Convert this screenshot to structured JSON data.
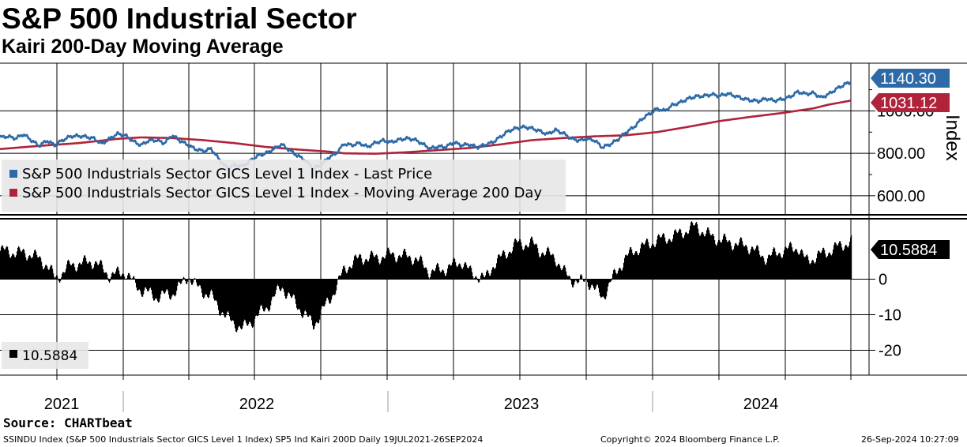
{
  "title": "S&P 500 Industrial Sector",
  "subtitle": "Kairi 200-Day Moving Average",
  "chart_data": [
    {
      "type": "line",
      "panel": "top",
      "ylabel": "Index",
      "ylim": [
        510,
        1225
      ],
      "yticks": [
        "600.00",
        "800.00",
        "1000.00"
      ],
      "grid": true,
      "x_range": [
        "2021-07-19",
        "2024-09-26"
      ],
      "legend": "upper-left",
      "series": [
        {
          "name": "S&P 500 Industrials Sector GICS Level 1 Index - Last Price",
          "color": "#2e6aa8",
          "last_label": "1140.30",
          "points": [
            [
              0.0,
              875
            ],
            [
              0.01,
              880
            ],
            [
              0.02,
              870
            ],
            [
              0.03,
              890
            ],
            [
              0.04,
              862
            ],
            [
              0.05,
              835
            ],
            [
              0.06,
              860
            ],
            [
              0.07,
              838
            ],
            [
              0.08,
              862
            ],
            [
              0.09,
              880
            ],
            [
              0.1,
              882
            ],
            [
              0.11,
              878
            ],
            [
              0.12,
              870
            ],
            [
              0.13,
              845
            ],
            [
              0.14,
              868
            ],
            [
              0.15,
              892
            ],
            [
              0.16,
              885
            ],
            [
              0.17,
              858
            ],
            [
              0.18,
              838
            ],
            [
              0.19,
              860
            ],
            [
              0.2,
              862
            ],
            [
              0.21,
              848
            ],
            [
              0.22,
              885
            ],
            [
              0.23,
              860
            ],
            [
              0.24,
              840
            ],
            [
              0.25,
              820
            ],
            [
              0.26,
              810
            ],
            [
              0.27,
              822
            ],
            [
              0.28,
              772
            ],
            [
              0.29,
              730
            ],
            [
              0.3,
              745
            ],
            [
              0.31,
              738
            ],
            [
              0.32,
              765
            ],
            [
              0.33,
              790
            ],
            [
              0.34,
              800
            ],
            [
              0.35,
              820
            ],
            [
              0.36,
              842
            ],
            [
              0.37,
              815
            ],
            [
              0.38,
              790
            ],
            [
              0.39,
              768
            ],
            [
              0.4,
              730
            ],
            [
              0.41,
              742
            ],
            [
              0.42,
              780
            ],
            [
              0.43,
              800
            ],
            [
              0.44,
              845
            ],
            [
              0.45,
              838
            ],
            [
              0.46,
              848
            ],
            [
              0.47,
              830
            ],
            [
              0.48,
              850
            ],
            [
              0.49,
              860
            ],
            [
              0.5,
              852
            ],
            [
              0.51,
              864
            ],
            [
              0.52,
              870
            ],
            [
              0.53,
              865
            ],
            [
              0.54,
              845
            ],
            [
              0.55,
              822
            ],
            [
              0.56,
              832
            ],
            [
              0.57,
              830
            ],
            [
              0.58,
              852
            ],
            [
              0.59,
              838
            ],
            [
              0.6,
              842
            ],
            [
              0.61,
              828
            ],
            [
              0.62,
              840
            ],
            [
              0.63,
              852
            ],
            [
              0.64,
              878
            ],
            [
              0.65,
              905
            ],
            [
              0.66,
              918
            ],
            [
              0.67,
              924
            ],
            [
              0.68,
              918
            ],
            [
              0.69,
              905
            ],
            [
              0.7,
              890
            ],
            [
              0.71,
              910
            ],
            [
              0.72,
              895
            ],
            [
              0.73,
              870
            ],
            [
              0.74,
              860
            ],
            [
              0.75,
              868
            ],
            [
              0.76,
              862
            ],
            [
              0.77,
              828
            ],
            [
              0.78,
              842
            ],
            [
              0.79,
              865
            ],
            [
              0.8,
              898
            ],
            [
              0.81,
              922
            ],
            [
              0.82,
              960
            ],
            [
              0.83,
              985
            ],
            [
              0.84,
              1010
            ],
            [
              0.85,
              1000
            ],
            [
              0.86,
              1028
            ],
            [
              0.87,
              1040
            ],
            [
              0.88,
              1058
            ],
            [
              0.89,
              1068
            ],
            [
              0.9,
              1070
            ],
            [
              0.91,
              1078
            ],
            [
              0.92,
              1070
            ],
            [
              0.93,
              1082
            ],
            [
              0.94,
              1070
            ],
            [
              0.95,
              1058
            ],
            [
              0.96,
              1050
            ],
            [
              0.97,
              1046
            ],
            [
              0.98,
              1058
            ],
            [
              0.99,
              1048
            ],
            [
              1.0,
              1055
            ],
            [
              1.01,
              1066
            ],
            [
              1.02,
              1090
            ],
            [
              1.03,
              1080
            ],
            [
              1.04,
              1085
            ],
            [
              1.05,
              1062
            ],
            [
              1.06,
              1080
            ],
            [
              1.07,
              1105
            ],
            [
              1.08,
              1125
            ],
            [
              1.09,
              1140
            ]
          ]
        },
        {
          "name": "S&P 500 Industrials Sector GICS Level 1 Index - Moving Average 200 Day",
          "color": "#b0233a",
          "last_label": "1031.12",
          "points": [
            [
              0.0,
              820
            ],
            [
              0.05,
              835
            ],
            [
              0.1,
              848
            ],
            [
              0.15,
              868
            ],
            [
              0.18,
              875
            ],
            [
              0.22,
              872
            ],
            [
              0.26,
              862
            ],
            [
              0.3,
              848
            ],
            [
              0.34,
              830
            ],
            [
              0.38,
              818
            ],
            [
              0.42,
              808
            ],
            [
              0.44,
              800
            ],
            [
              0.48,
              798
            ],
            [
              0.52,
              805
            ],
            [
              0.56,
              815
            ],
            [
              0.6,
              825
            ],
            [
              0.64,
              842
            ],
            [
              0.68,
              862
            ],
            [
              0.72,
              872
            ],
            [
              0.76,
              880
            ],
            [
              0.8,
              885
            ],
            [
              0.84,
              900
            ],
            [
              0.88,
              925
            ],
            [
              0.92,
              952
            ],
            [
              0.96,
              972
            ],
            [
              1.0,
              990
            ],
            [
              1.04,
              1012
            ],
            [
              1.06,
              1030
            ],
            [
              1.09,
              1050
            ]
          ]
        }
      ]
    },
    {
      "type": "bar",
      "panel": "bottom",
      "ylim": [
        -27,
        17
      ],
      "yticks": [
        "0",
        "-10",
        "-20"
      ],
      "grid": true,
      "last_label": "10.5884",
      "legend_value": "10.5884",
      "series_color": "#000000",
      "keyframes": [
        [
          0.0,
          8
        ],
        [
          0.04,
          7
        ],
        [
          0.06,
          4
        ],
        [
          0.07,
          0
        ],
        [
          0.08,
          2
        ],
        [
          0.09,
          4
        ],
        [
          0.12,
          5
        ],
        [
          0.14,
          1
        ],
        [
          0.16,
          2
        ],
        [
          0.17,
          -1
        ],
        [
          0.18,
          -3
        ],
        [
          0.2,
          -5
        ],
        [
          0.22,
          -4
        ],
        [
          0.23,
          -2
        ],
        [
          0.24,
          1
        ],
        [
          0.25,
          -2
        ],
        [
          0.27,
          -5
        ],
        [
          0.29,
          -11
        ],
        [
          0.31,
          -14
        ],
        [
          0.33,
          -10
        ],
        [
          0.34,
          -8
        ],
        [
          0.35,
          -5
        ],
        [
          0.36,
          -2
        ],
        [
          0.37,
          -5
        ],
        [
          0.39,
          -10
        ],
        [
          0.4,
          -13
        ],
        [
          0.42,
          -6
        ],
        [
          0.43,
          -2
        ],
        [
          0.44,
          3
        ],
        [
          0.46,
          6
        ],
        [
          0.48,
          6
        ],
        [
          0.5,
          7
        ],
        [
          0.53,
          6
        ],
        [
          0.55,
          2
        ],
        [
          0.57,
          3
        ],
        [
          0.59,
          5
        ],
        [
          0.6,
          2
        ],
        [
          0.62,
          0
        ],
        [
          0.63,
          4
        ],
        [
          0.65,
          8
        ],
        [
          0.66,
          10
        ],
        [
          0.68,
          10
        ],
        [
          0.69,
          8
        ],
        [
          0.71,
          6
        ],
        [
          0.72,
          2
        ],
        [
          0.73,
          0
        ],
        [
          0.74,
          -1
        ],
        [
          0.75,
          0
        ],
        [
          0.76,
          -3
        ],
        [
          0.77,
          -5
        ],
        [
          0.78,
          -1
        ],
        [
          0.79,
          3
        ],
        [
          0.8,
          6
        ],
        [
          0.81,
          8
        ],
        [
          0.82,
          9
        ],
        [
          0.84,
          11
        ],
        [
          0.86,
          12
        ],
        [
          0.88,
          14
        ],
        [
          0.89,
          15
        ],
        [
          0.9,
          13
        ],
        [
          0.92,
          11
        ],
        [
          0.94,
          10
        ],
        [
          0.96,
          9
        ],
        [
          0.97,
          7
        ],
        [
          0.98,
          6
        ],
        [
          1.0,
          8
        ],
        [
          1.02,
          9
        ],
        [
          1.03,
          5
        ],
        [
          1.05,
          7
        ],
        [
          1.06,
          8
        ],
        [
          1.07,
          9
        ],
        [
          1.08,
          10
        ],
        [
          1.09,
          10.59
        ]
      ]
    }
  ],
  "x_axis": {
    "years": [
      "2021",
      "2022",
      "2023",
      "2024"
    ]
  },
  "legend": {
    "items": [
      {
        "label": "S&P 500 Industrials Sector GICS Level 1 Index - Last Price",
        "color": "#2e6aa8"
      },
      {
        "label": "S&P 500 Industrials Sector GICS Level 1 Index - Moving Average 200 Day",
        "color": "#b0233a"
      }
    ]
  },
  "footer": {
    "source": "Source: CHARTbeat",
    "left": "SSINDU Index (S&P 500 Industrials Sector GICS Level 1 Index) SP5 Ind Kairi 200D  Daily 19JUL2021-26SEP2024",
    "copyright": "Copyright© 2024 Bloomberg Finance L.P.",
    "timestamp": "26-Sep-2024 10:27:09"
  },
  "colors": {
    "price": "#2e6aa8",
    "ma": "#b0233a",
    "bars": "#000000",
    "grid": "#000000"
  }
}
